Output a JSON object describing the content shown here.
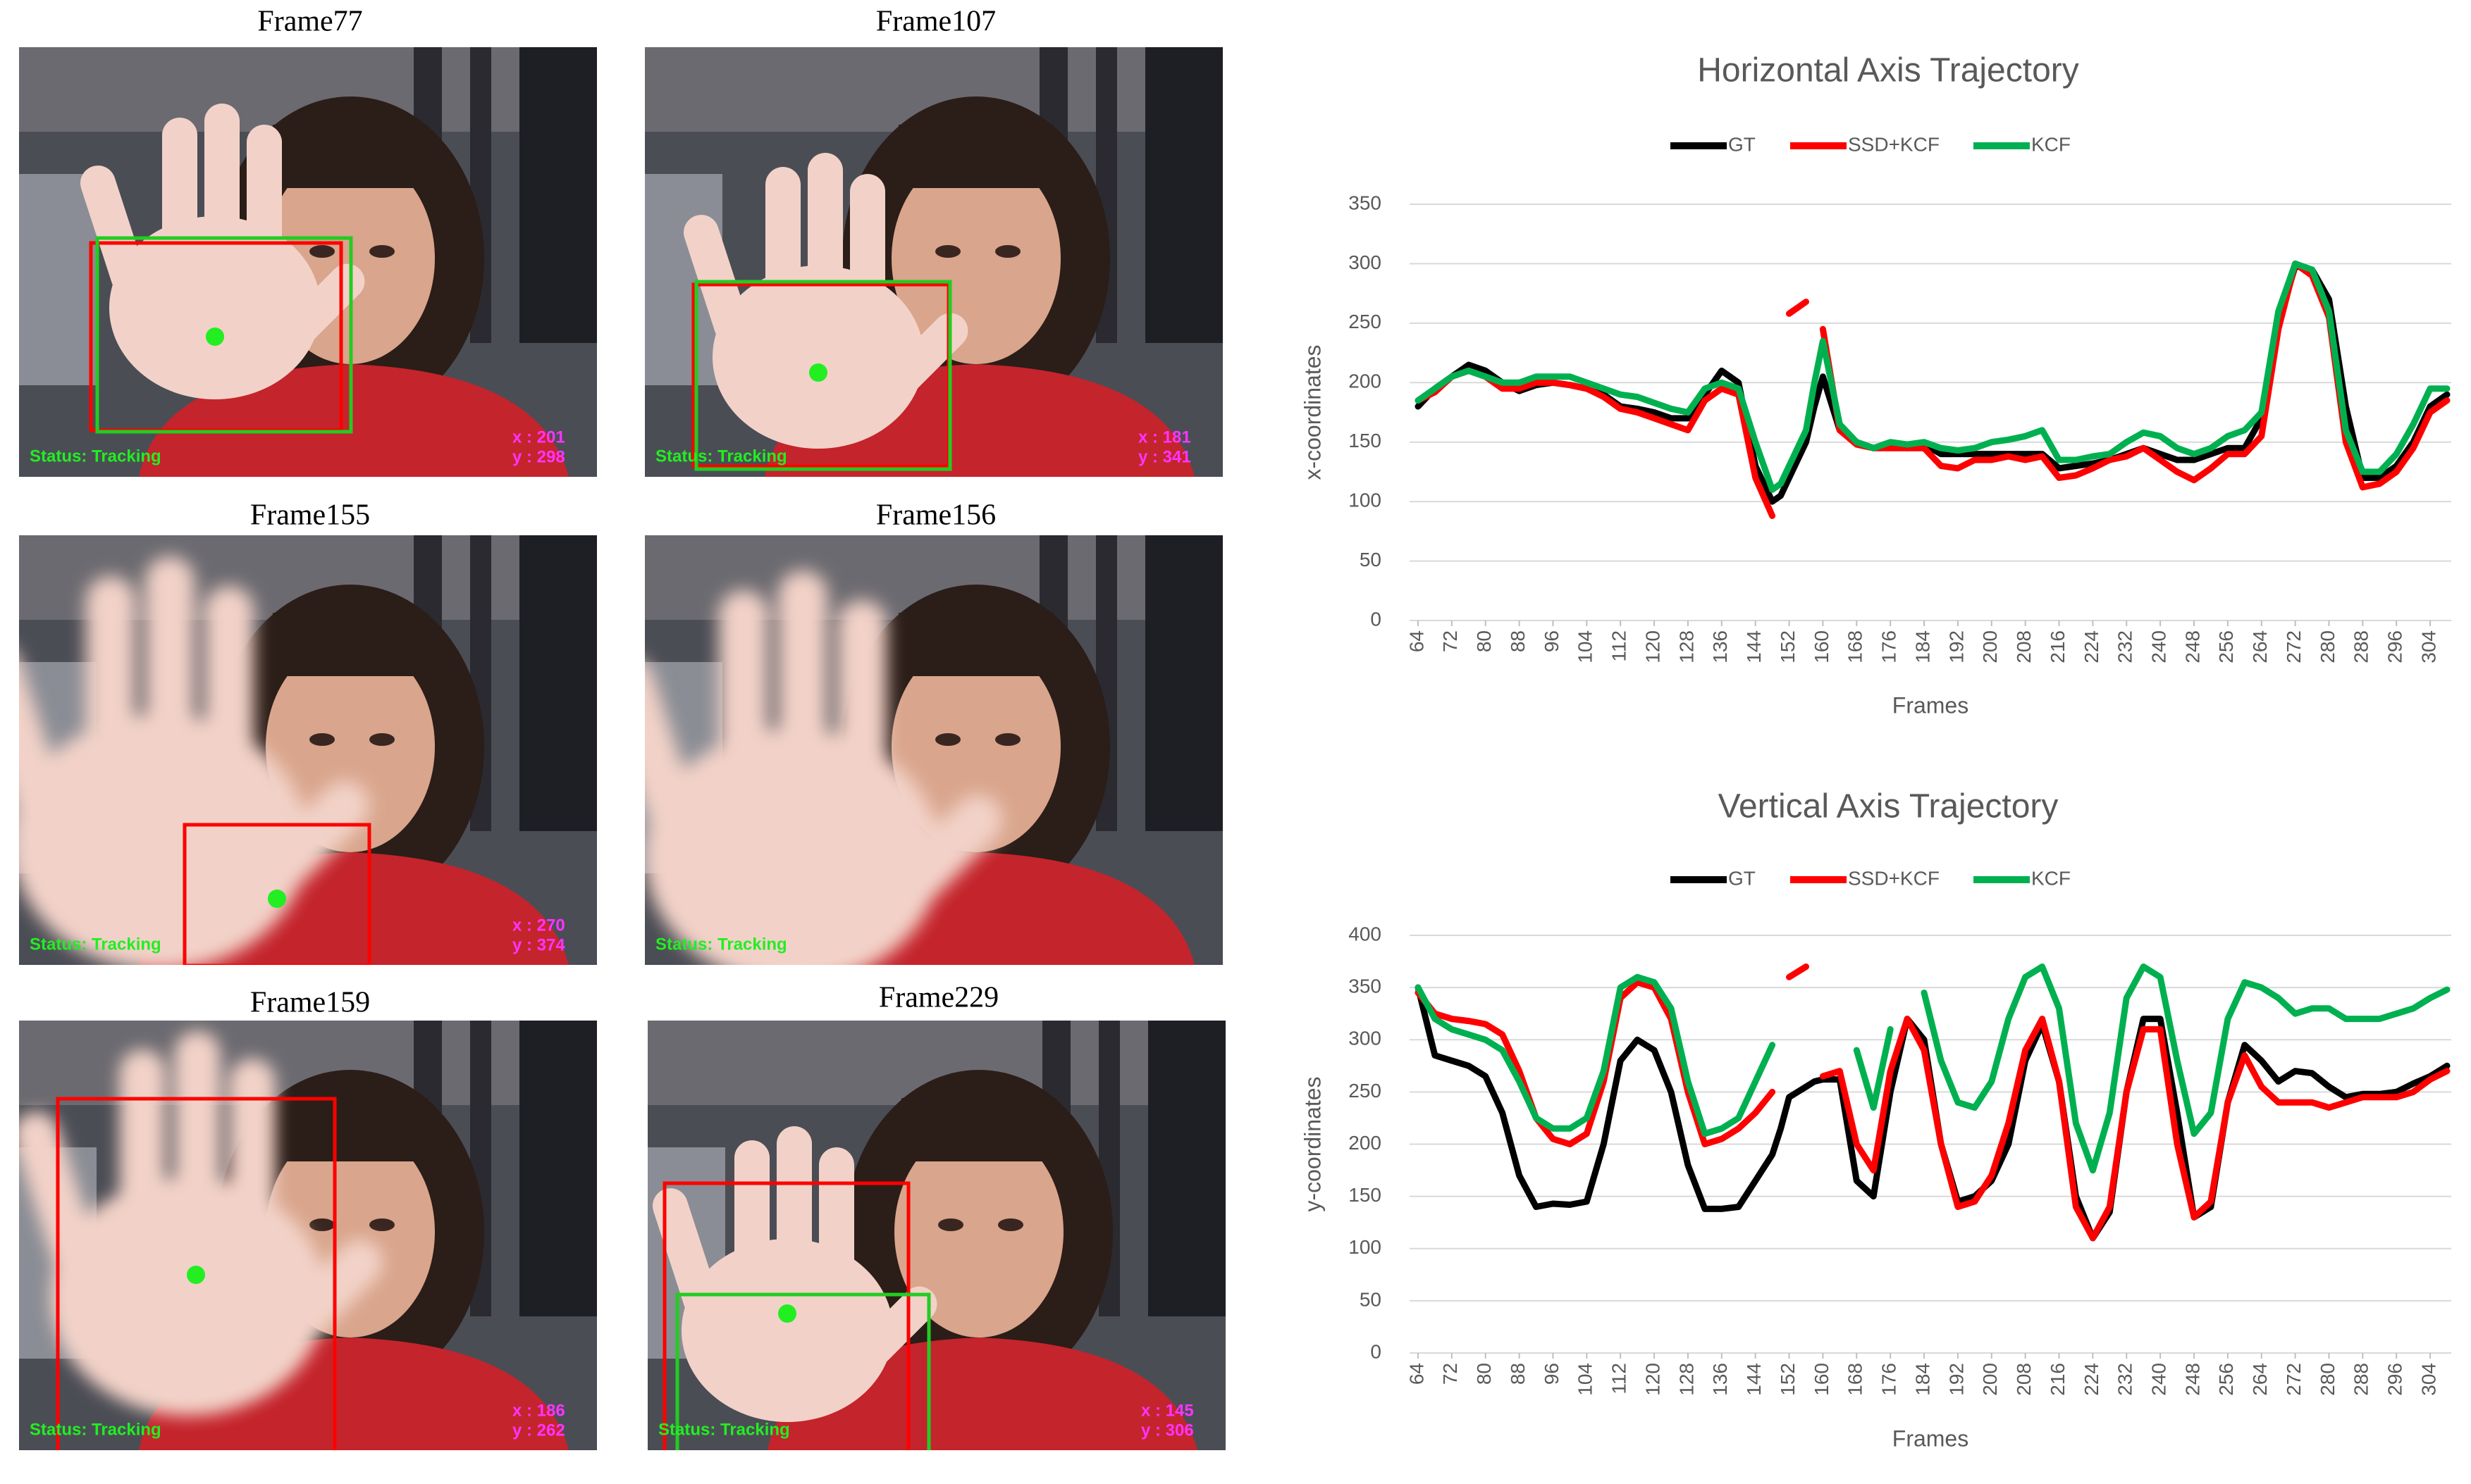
{
  "frames": [
    {
      "title": "Frame77",
      "status": "Status: Tracking",
      "x_text": "x : 201",
      "y_text": "y : 298"
    },
    {
      "title": "Frame107",
      "status": "Status: Tracking",
      "x_text": "x : 181",
      "y_text": "y : 341"
    },
    {
      "title": "Frame155",
      "status": "Status: Tracking",
      "x_text": "x : 270",
      "y_text": "y : 374"
    },
    {
      "title": "Frame156",
      "status": "Status: Tracking"
    },
    {
      "title": "Frame159",
      "status": "Status: Tracking",
      "x_text": "x : 186",
      "y_text": "y : 262"
    },
    {
      "title": "Frame229",
      "status": "Status: Tracking",
      "x_text": "x : 145",
      "y_text": "y : 306"
    }
  ],
  "chart_data": [
    {
      "type": "line",
      "title": "Horizontal Axis Trajectory",
      "x_label": "Frames",
      "y_label": "x-coordinates",
      "x": [
        64,
        68,
        72,
        76,
        80,
        84,
        88,
        92,
        96,
        100,
        104,
        108,
        112,
        116,
        120,
        124,
        128,
        132,
        136,
        140,
        144,
        148,
        150,
        152,
        156,
        158,
        160,
        164,
        168,
        172,
        176,
        180,
        184,
        188,
        192,
        196,
        200,
        204,
        208,
        212,
        216,
        220,
        224,
        228,
        232,
        236,
        240,
        244,
        248,
        252,
        256,
        260,
        264,
        268,
        272,
        276,
        280,
        284,
        288,
        292,
        296,
        300,
        304,
        308
      ],
      "xlim": [
        62,
        309
      ],
      "xticks": [
        64,
        72,
        80,
        88,
        96,
        104,
        112,
        120,
        128,
        136,
        144,
        152,
        160,
        168,
        176,
        184,
        192,
        200,
        208,
        216,
        224,
        232,
        240,
        248,
        256,
        264,
        272,
        280,
        288,
        296,
        304
      ],
      "ylim": [
        0,
        350
      ],
      "yticks": [
        0,
        50,
        100,
        150,
        200,
        250,
        300,
        350
      ],
      "grid": true,
      "series": [
        {
          "name": "GT",
          "color": "#000000",
          "values": [
            180,
            195,
            205,
            215,
            210,
            200,
            193,
            198,
            200,
            198,
            195,
            190,
            180,
            178,
            175,
            170,
            170,
            190,
            210,
            200,
            130,
            100,
            105,
            120,
            150,
            180,
            205,
            160,
            150,
            145,
            148,
            145,
            148,
            140,
            140,
            140,
            140,
            140,
            140,
            140,
            128,
            130,
            132,
            135,
            140,
            145,
            140,
            135,
            135,
            140,
            145,
            145,
            170,
            250,
            298,
            295,
            270,
            180,
            120,
            120,
            130,
            150,
            180,
            190
          ]
        },
        {
          "name": "SSD+KCF",
          "color": "#ff0000",
          "values": [
            185,
            192,
            205,
            210,
            205,
            195,
            195,
            200,
            200,
            198,
            195,
            188,
            178,
            175,
            170,
            165,
            160,
            185,
            195,
            190,
            120,
            88,
            null,
            258,
            268,
            null,
            245,
            160,
            148,
            145,
            145,
            145,
            145,
            130,
            128,
            135,
            135,
            138,
            135,
            138,
            120,
            122,
            128,
            135,
            138,
            145,
            135,
            125,
            118,
            128,
            140,
            140,
            155,
            245,
            300,
            290,
            255,
            150,
            112,
            115,
            125,
            145,
            175,
            185
          ]
        },
        {
          "name": "KCF",
          "color": "#00b050",
          "values": [
            185,
            195,
            205,
            210,
            205,
            200,
            200,
            205,
            205,
            205,
            200,
            195,
            190,
            188,
            183,
            178,
            175,
            195,
            200,
            195,
            150,
            110,
            115,
            130,
            160,
            200,
            235,
            165,
            150,
            145,
            150,
            148,
            150,
            145,
            143,
            145,
            150,
            152,
            155,
            160,
            135,
            135,
            138,
            140,
            150,
            158,
            155,
            145,
            140,
            145,
            155,
            160,
            175,
            260,
            300,
            295,
            260,
            160,
            125,
            125,
            140,
            165,
            195,
            195
          ]
        }
      ]
    },
    {
      "type": "line",
      "title": "Vertical Axis Trajectory",
      "x_label": "Frames",
      "y_label": "y-coordinates",
      "x": [
        64,
        68,
        72,
        76,
        80,
        84,
        88,
        92,
        96,
        100,
        104,
        108,
        112,
        116,
        120,
        124,
        128,
        132,
        136,
        140,
        144,
        148,
        150,
        152,
        156,
        158,
        160,
        164,
        168,
        172,
        176,
        180,
        184,
        188,
        192,
        196,
        200,
        204,
        208,
        212,
        216,
        220,
        224,
        228,
        232,
        236,
        240,
        244,
        248,
        252,
        256,
        260,
        264,
        268,
        272,
        276,
        280,
        284,
        288,
        292,
        296,
        300,
        304,
        308
      ],
      "xlim": [
        62,
        309
      ],
      "xticks": [
        64,
        72,
        80,
        88,
        96,
        104,
        112,
        120,
        128,
        136,
        144,
        152,
        160,
        168,
        176,
        184,
        192,
        200,
        208,
        216,
        224,
        232,
        240,
        248,
        256,
        264,
        272,
        280,
        288,
        296,
        304
      ],
      "ylim": [
        0,
        400
      ],
      "yticks": [
        0,
        50,
        100,
        150,
        200,
        250,
        300,
        350,
        400
      ],
      "grid": true,
      "series": [
        {
          "name": "GT",
          "color": "#000000",
          "values": [
            350,
            285,
            280,
            275,
            265,
            230,
            170,
            140,
            143,
            142,
            145,
            200,
            280,
            300,
            290,
            250,
            180,
            138,
            138,
            140,
            165,
            190,
            215,
            245,
            255,
            260,
            262,
            262,
            165,
            150,
            250,
            320,
            300,
            200,
            145,
            150,
            165,
            200,
            280,
            315,
            260,
            150,
            110,
            135,
            250,
            320,
            320,
            230,
            130,
            140,
            240,
            295,
            280,
            260,
            270,
            268,
            255,
            245,
            248,
            248,
            250,
            258,
            265,
            275
          ]
        },
        {
          "name": "SSD+KCF",
          "color": "#ff0000",
          "values": [
            345,
            325,
            320,
            318,
            315,
            305,
            270,
            225,
            205,
            200,
            210,
            260,
            340,
            355,
            350,
            320,
            250,
            200,
            205,
            215,
            230,
            250,
            null,
            360,
            370,
            null,
            265,
            270,
            200,
            175,
            270,
            320,
            290,
            200,
            140,
            145,
            170,
            220,
            290,
            320,
            260,
            140,
            110,
            140,
            250,
            310,
            310,
            200,
            130,
            145,
            240,
            285,
            255,
            240,
            240,
            240,
            235,
            240,
            245,
            245,
            245,
            250,
            262,
            270
          ]
        },
        {
          "name": "KCF",
          "color": "#00b050",
          "values": [
            350,
            320,
            310,
            305,
            300,
            290,
            260,
            225,
            215,
            215,
            225,
            270,
            350,
            360,
            355,
            330,
            260,
            210,
            215,
            225,
            260,
            295,
            null,
            null,
            null,
            null,
            null,
            null,
            290,
            235,
            310,
            null,
            345,
            280,
            240,
            235,
            260,
            320,
            360,
            370,
            330,
            220,
            175,
            230,
            340,
            370,
            360,
            280,
            210,
            230,
            320,
            355,
            350,
            340,
            325,
            330,
            330,
            320,
            320,
            320,
            325,
            330,
            340,
            348
          ]
        }
      ]
    }
  ]
}
